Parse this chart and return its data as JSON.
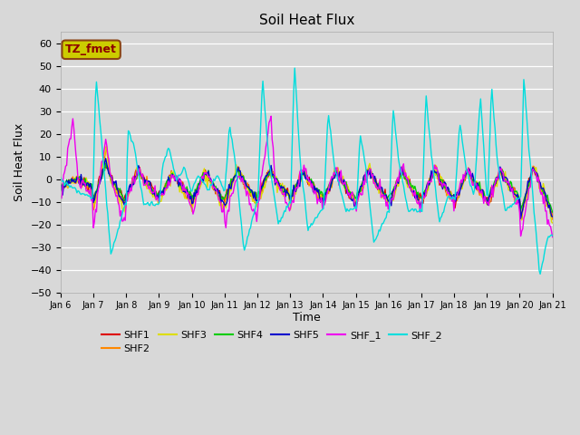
{
  "title": "Soil Heat Flux",
  "ylabel": "Soil Heat Flux",
  "xlabel": "Time",
  "ylim": [
    -50,
    65
  ],
  "yticks": [
    -50,
    -40,
    -30,
    -20,
    -10,
    0,
    10,
    20,
    30,
    40,
    50,
    60
  ],
  "plot_bg_color": "#d8d8d8",
  "fig_bg_color": "#d8d8d8",
  "series_colors": {
    "SHF1": "#dd0000",
    "SHF2": "#ff8800",
    "SHF3": "#dddd00",
    "SHF4": "#00cc00",
    "SHF5": "#0000cc",
    "SHF_1": "#ee00ee",
    "SHF_2": "#00dddd"
  },
  "xtick_labels": [
    "Jan 6",
    "Jan 7",
    "Jan 8",
    "Jan 9",
    "Jan 10",
    "Jan 11",
    "Jan 12",
    "Jan 13",
    "Jan 14",
    "Jan 15",
    "Jan 16",
    "Jan 17",
    "Jan 18",
    "Jan 19",
    "Jan 20",
    "Jan 21"
  ],
  "annotation_text": "TZ_fmet",
  "annotation_color": "#8B0000",
  "annotation_bg": "#cccc00",
  "annotation_border": "#8B4513",
  "days": 15,
  "n_points": 480
}
